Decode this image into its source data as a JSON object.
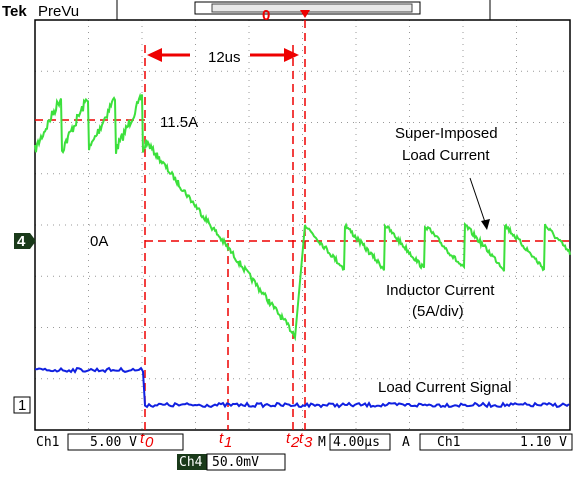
{
  "header": {
    "brand": "Tek",
    "mode": "PreVu",
    "trigger_pos": "0"
  },
  "annotations": {
    "interval": "12us",
    "peak": "11.5A",
    "zero": "0A",
    "superimposed_1": "Super-Imposed",
    "superimposed_2": "Load Current",
    "inductor_1": "Inductor Current",
    "inductor_2": "(5A/div)",
    "signal": "Load Current Signal"
  },
  "times": [
    {
      "t": "t",
      "sub": "0"
    },
    {
      "t": "t",
      "sub": "1"
    },
    {
      "t": "t",
      "sub": "2"
    },
    {
      "t": "t",
      "sub": "3"
    }
  ],
  "markers": {
    "ch4": "4",
    "ch1": "1"
  },
  "footer": {
    "ch1": "Ch1",
    "ch1_scale": "5.00 V",
    "m": "M",
    "timebase": "4.00µs",
    "a": "A",
    "trig_ch": "Ch1",
    "trig_level": "1.10 V",
    "ch4": "Ch4",
    "ch4_scale": "50.0mV"
  }
}
